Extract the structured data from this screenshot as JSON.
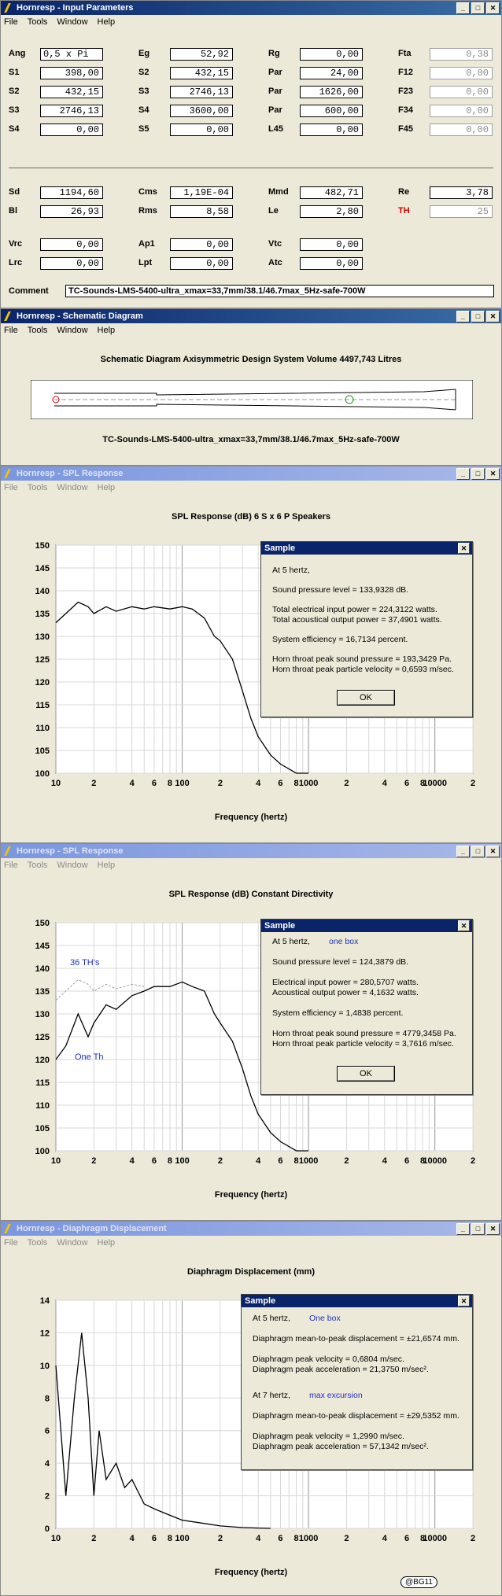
{
  "input_win": {
    "title": "Hornresp - Input Parameters",
    "menu": [
      "File",
      "Tools",
      "Window",
      "Help"
    ],
    "rows1": [
      [
        {
          "l": "Ang",
          "v": "0,5 x Pi",
          "left": true
        },
        {
          "l": "Eg",
          "v": "52,92"
        },
        {
          "l": "Rg",
          "v": "0,00"
        },
        {
          "l": "Fta",
          "v": "0,38",
          "gray": true
        }
      ],
      [
        {
          "l": "S1",
          "v": "398,00"
        },
        {
          "l": "S2",
          "v": "432,15"
        },
        {
          "l": "Par",
          "v": "24,00"
        },
        {
          "l": "F12",
          "v": "0,00",
          "gray": true
        }
      ],
      [
        {
          "l": "S2",
          "v": "432,15"
        },
        {
          "l": "S3",
          "v": "2746,13"
        },
        {
          "l": "Par",
          "v": "1626,00"
        },
        {
          "l": "F23",
          "v": "0,00",
          "gray": true
        }
      ],
      [
        {
          "l": "S3",
          "v": "2746,13"
        },
        {
          "l": "S4",
          "v": "3600,00"
        },
        {
          "l": "Par",
          "v": "600,00"
        },
        {
          "l": "F34",
          "v": "0,00",
          "gray": true
        }
      ],
      [
        {
          "l": "S4",
          "v": "0,00"
        },
        {
          "l": "S5",
          "v": "0,00"
        },
        {
          "l": "L45",
          "v": "0,00"
        },
        {
          "l": "F45",
          "v": "0,00",
          "gray": true
        }
      ]
    ],
    "rows2": [
      [
        {
          "l": "Sd",
          "v": "1194,60"
        },
        {
          "l": "Cms",
          "v": "1,19E-04"
        },
        {
          "l": "Mmd",
          "v": "482,71"
        },
        {
          "l": "Re",
          "v": "3,78"
        }
      ],
      [
        {
          "l": "Bl",
          "v": "26,93"
        },
        {
          "l": "Rms",
          "v": "8,58"
        },
        {
          "l": "Le",
          "v": "2,80"
        },
        {
          "l": "TH",
          "v": "25",
          "gray": true,
          "red": true
        }
      ],
      [
        {
          "l": "Vrc",
          "v": "0,00"
        },
        {
          "l": "Ap1",
          "v": "0,00"
        },
        {
          "l": "Vtc",
          "v": "0,00"
        }
      ],
      [
        {
          "l": "Lrc",
          "v": "0,00"
        },
        {
          "l": "Lpt",
          "v": "0,00"
        },
        {
          "l": "Atc",
          "v": "0,00"
        }
      ]
    ],
    "comment_label": "Comment",
    "comment": "TC-Sounds-LMS-5400-ultra_xmax=33,7mm/38.1/46.7max_5Hz-safe-700W"
  },
  "schem_win": {
    "title": "Hornresp - Schematic Diagram",
    "menu": [
      "File",
      "Tools",
      "Window",
      "Help"
    ],
    "heading": "Schematic Diagram   Axisymmetric Design   System Volume 4497,743 Litres",
    "caption": "TC-Sounds-LMS-5400-ultra_xmax=33,7mm/38.1/46.7max_5Hz-safe-700W"
  },
  "spl1_win": {
    "title": "Hornresp - SPL Response",
    "menu": [
      "File",
      "Tools",
      "Window",
      "Help"
    ],
    "chart_title": "SPL Response (dB)   6 S x 6 P Speakers",
    "xlabel": "Frequency (hertz)",
    "dialog": {
      "title": "Sample",
      "close": "✕",
      "lines": [
        "At 5 hertz,",
        "Sound pressure level = 133,9328 dB.",
        "Total electrical input power = 224,3122 watts.",
        "Total acoustical output power = 37,4901 watts.",
        "System efficiency = 16,7134 percent.",
        "Horn throat peak sound pressure = 193,3429 Pa.",
        "Horn throat peak particle velocity = 0,6593 m/sec."
      ],
      "ok": "OK"
    }
  },
  "spl2_win": {
    "title": "Hornresp - SPL Response",
    "menu": [
      "File",
      "Tools",
      "Window",
      "Help"
    ],
    "chart_title": "SPL Response (dB)   Constant Directivity",
    "xlabel": "Frequency (hertz)",
    "annot_36": "36 TH's",
    "annot_one": "One Th",
    "dialog": {
      "title": "Sample",
      "close": "✕",
      "lines": [
        "At 5 hertz,",
        "Sound pressure level = 124,3879 dB.",
        "Electrical input power = 280,5707 watts.",
        "Acoustical output power = 4,1632 watts.",
        "System efficiency = 1,4838 percent.",
        "Horn throat peak sound pressure = 4779,3458 Pa.",
        "Horn throat peak particle velocity = 3,7616 m/sec."
      ],
      "note": "one box",
      "ok": "OK"
    }
  },
  "disp_win": {
    "title": "Hornresp - Diaphragm Displacement",
    "menu": [
      "File",
      "Tools",
      "Window",
      "Help"
    ],
    "chart_title": "Diaphragm Displacement (mm)",
    "xlabel": "Frequency (hertz)",
    "dialog": {
      "title": "Sample",
      "close": "✕",
      "at5": "At 5 hertz,",
      "note1": "One box",
      "l1": "Diaphragm mean-to-peak displacement = ±21,6574 mm.",
      "l2": "Diaphragm peak velocity = 0,6804 m/sec.",
      "l3": "Diaphragm peak acceleration = 21,3750 m/sec².",
      "at7": "At 7 hertz,",
      "note2": "max excursion",
      "l4": "Diaphragm mean-to-peak displacement = ±29,5352 mm.",
      "l5": "Diaphragm peak velocity = 1,2990 m/sec.",
      "l6": "Diaphragm peak acceleration = 57,1342 m/sec²."
    },
    "stamp": "@BG11"
  },
  "chart_data": [
    {
      "type": "line",
      "title": "SPL Response (dB)   6 S x 6 P Speakers",
      "xlabel": "Frequency (hertz)",
      "x_scale": "log",
      "xlim": [
        10,
        20000
      ],
      "ylim": [
        100,
        150
      ],
      "yticks": [
        100,
        105,
        110,
        115,
        120,
        125,
        130,
        135,
        140,
        145,
        150
      ],
      "xtick_labels": [
        "10",
        "2",
        "4",
        "6",
        "8",
        "100",
        "2",
        "4",
        "6",
        "8",
        "1000",
        "2",
        "4",
        "6",
        "8",
        "10000",
        "2"
      ],
      "series": [
        {
          "x": [
            10,
            12,
            15,
            18,
            20,
            25,
            30,
            40,
            50,
            60,
            80,
            100,
            120,
            150,
            180,
            200,
            250,
            300,
            350,
            400,
            500,
            600,
            800,
            1000
          ],
          "y": [
            133,
            135,
            137.5,
            136.5,
            135,
            136.5,
            135.5,
            136.5,
            136,
            136.5,
            136,
            136.5,
            136,
            134,
            130,
            129,
            125,
            118,
            112,
            108,
            104,
            102,
            100,
            100
          ]
        }
      ],
      "grid": true
    },
    {
      "type": "line",
      "title": "SPL Response (dB)   Constant Directivity",
      "xlabel": "Frequency (hertz)",
      "x_scale": "log",
      "xlim": [
        10,
        20000
      ],
      "ylim": [
        100,
        150
      ],
      "yticks": [
        100,
        105,
        110,
        115,
        120,
        125,
        130,
        135,
        140,
        145,
        150
      ],
      "xtick_labels": [
        "10",
        "2",
        "4",
        "6",
        "8",
        "100",
        "2",
        "4",
        "6",
        "8",
        "1000",
        "2",
        "4",
        "6",
        "8",
        "10000",
        "2"
      ],
      "series": [
        {
          "name": "36 TH's",
          "x": [
            10,
            12,
            15,
            18,
            20,
            25,
            30,
            40,
            50
          ],
          "y": [
            133,
            135,
            137.5,
            136.5,
            135,
            136.5,
            135.5,
            136.5,
            136
          ]
        },
        {
          "name": "One Th",
          "x": [
            10,
            12,
            15,
            18,
            20,
            25,
            30,
            40,
            50,
            60,
            80,
            100,
            120,
            150,
            180,
            200,
            250,
            300,
            350,
            400,
            500,
            600,
            800,
            1000
          ],
          "y": [
            120,
            123,
            130,
            125,
            128,
            132,
            131,
            134,
            135,
            136,
            136,
            137,
            136,
            135,
            130,
            128,
            124,
            118,
            112,
            108,
            104,
            102,
            100,
            100
          ]
        }
      ],
      "grid": true
    },
    {
      "type": "line",
      "title": "Diaphragm Displacement (mm)",
      "xlabel": "Frequency (hertz)",
      "x_scale": "log",
      "xlim": [
        10,
        20000
      ],
      "ylim": [
        0,
        14
      ],
      "yticks": [
        0,
        2,
        4,
        6,
        8,
        10,
        12,
        14
      ],
      "xtick_labels": [
        "10",
        "2",
        "4",
        "6",
        "8",
        "100",
        "2",
        "4",
        "6",
        "8",
        "1000",
        "2",
        "4",
        "6",
        "8",
        "10000",
        "2"
      ],
      "series": [
        {
          "x": [
            10,
            12,
            14,
            16,
            18,
            20,
            22,
            25,
            30,
            35,
            40,
            50,
            60,
            80,
            100,
            150,
            200,
            300,
            400,
            500
          ],
          "y": [
            10,
            2,
            8,
            12,
            8,
            2,
            6,
            3,
            4,
            2.5,
            3,
            1.5,
            1.2,
            0.8,
            0.5,
            0.3,
            0.15,
            0.05,
            0.02,
            0
          ]
        }
      ],
      "grid": true
    }
  ]
}
